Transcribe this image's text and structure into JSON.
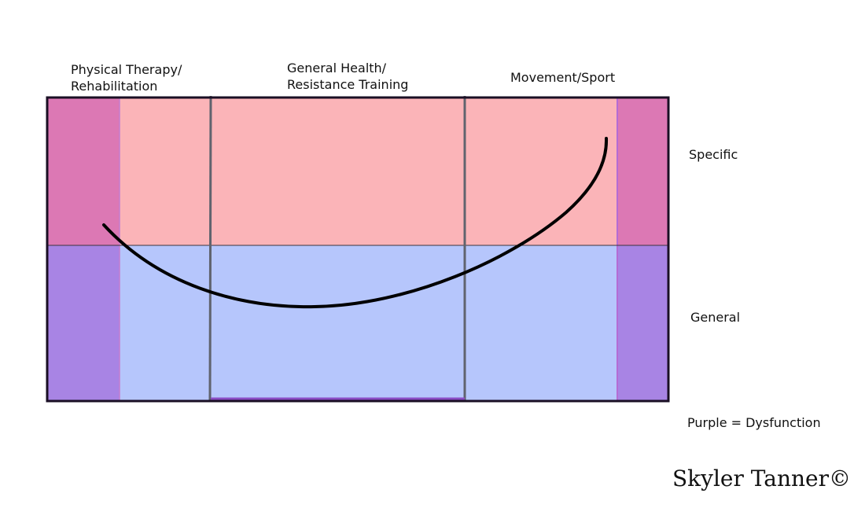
{
  "columns": [
    {
      "lines": [
        "Physical Therapy/",
        "Rehabilitation"
      ]
    },
    {
      "lines": [
        "General Health/",
        "Resistance Training"
      ]
    },
    {
      "lines": [
        "Movement/Sport"
      ]
    }
  ],
  "rows": {
    "top": "Specific",
    "bottom": "General"
  },
  "legend": "Purple = Dysfunction",
  "signature": "Skyler Tanner©",
  "colors": {
    "specific_zone": "#fbb4b8",
    "general_zone": "#b6c6fc",
    "dysfunction_specific": "#dc78b4",
    "dysfunction_general": "#a884e4",
    "frame": "#1a0f24",
    "divider": "#60636e",
    "curve": "#000000"
  }
}
